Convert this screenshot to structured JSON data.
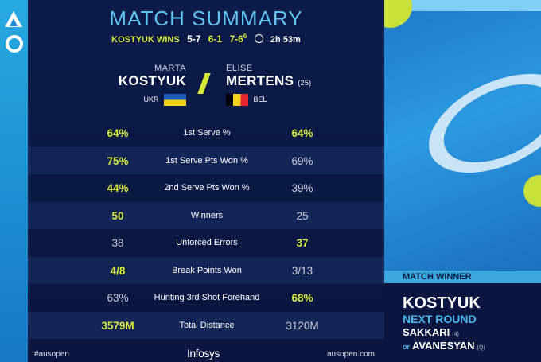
{
  "title": "MATCH SUMMARY",
  "result": {
    "winner_text": "KOSTYUK WINS",
    "sets": [
      {
        "score": "5-7",
        "won": false
      },
      {
        "score": "6-1",
        "won": true
      },
      {
        "score": "7-6",
        "tiebreak": "6",
        "won": true
      }
    ],
    "duration": "2h 53m"
  },
  "player1": {
    "first": "MARTA",
    "last": "KOSTYUK",
    "country": "UKR"
  },
  "player2": {
    "first": "ELISE",
    "last": "MERTENS",
    "seed": "(25)",
    "country": "BEL"
  },
  "stats": [
    {
      "label": "1st Serve %",
      "p1": "64%",
      "p2": "64%",
      "p1_hl": true,
      "p2_hl": true
    },
    {
      "label": "1st Serve Pts Won %",
      "p1": "75%",
      "p2": "69%",
      "p1_hl": true,
      "p2_hl": false
    },
    {
      "label": "2nd Serve Pts Won %",
      "p1": "44%",
      "p2": "39%",
      "p1_hl": true,
      "p2_hl": false
    },
    {
      "label": "Winners",
      "p1": "50",
      "p2": "25",
      "p1_hl": true,
      "p2_hl": false
    },
    {
      "label": "Unforced Errors",
      "p1": "38",
      "p2": "37",
      "p1_hl": false,
      "p2_hl": true
    },
    {
      "label": "Break Points Won",
      "p1": "4/8",
      "p2": "3/13",
      "p1_hl": true,
      "p2_hl": false
    },
    {
      "label": "Hunting 3rd Shot Forehand",
      "p1": "63%",
      "p2": "68%",
      "p1_hl": false,
      "p2_hl": true
    },
    {
      "label": "Total Distance",
      "p1": "3579M",
      "p2": "3120M",
      "p1_hl": true,
      "p2_hl": false
    }
  ],
  "footer": {
    "hashtag": "#ausopen",
    "sponsor": "Infosys",
    "site": "ausopen.com"
  },
  "winner_panel": {
    "label": "MATCH WINNER",
    "name": "KOSTYUK",
    "next_round": "NEXT ROUND",
    "opponent1": {
      "name": "SAKKARI",
      "seed": "(4)"
    },
    "or_text": "or",
    "opponent2": {
      "name": "AVANESYAN",
      "seed": "(Q)"
    }
  },
  "colors": {
    "accent": "#d7ea3a",
    "title": "#5ec3ef",
    "background": "#0a1640"
  },
  "icons": [
    "ao-logo-icon",
    "clock-icon",
    "ukraine-flag-icon",
    "belgium-flag-icon"
  ]
}
